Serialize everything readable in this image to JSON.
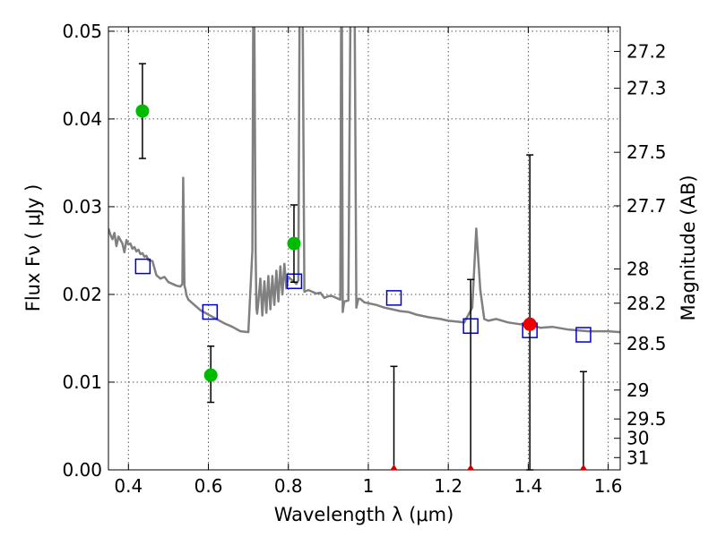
{
  "chart_data": {
    "type": "scatter",
    "xlabel": "Wavelength  λ (μm)",
    "ylabel": "Flux  Fν  ( μJy )",
    "y2label": "Magnitude (AB)",
    "xlim": [
      0.35,
      1.63
    ],
    "ylim": [
      0.0,
      0.0505
    ],
    "grid": true,
    "x_ticks": [
      0.4,
      0.6,
      0.8,
      1.0,
      1.2,
      1.4,
      1.6
    ],
    "x_tick_labels": [
      "0.4",
      "0.6",
      "0.8",
      "1",
      "1.2",
      "1.4",
      "1.6"
    ],
    "y_ticks": [
      0.0,
      0.01,
      0.02,
      0.03,
      0.04,
      0.05
    ],
    "y_tick_labels": [
      "0.00",
      "0.01",
      "0.02",
      "0.03",
      "0.04",
      "0.05"
    ],
    "right_ticks": [
      {
        "label": "27.2",
        "flux": 0.0477
      },
      {
        "label": "27.3",
        "flux": 0.0435
      },
      {
        "label": "27.5",
        "flux": 0.0362
      },
      {
        "label": "27.7",
        "flux": 0.0301
      },
      {
        "label": "28",
        "flux": 0.0229
      },
      {
        "label": "28.2",
        "flux": 0.019
      },
      {
        "label": "28.5",
        "flux": 0.0144
      },
      {
        "label": "29",
        "flux": 0.0091
      },
      {
        "label": "29.5",
        "flux": 0.0058
      },
      {
        "label": "30",
        "flux": 0.0036
      },
      {
        "label": "31",
        "flux": 0.0014
      }
    ],
    "colors": {
      "model": "#808080",
      "detected": "#00bb00",
      "highlight": "#ee0000",
      "model_photometry": "#0000cc",
      "upper_limit": "#cc0000",
      "errorbar": "#000000"
    },
    "series": [
      {
        "type": "line",
        "x": [
          0.35,
          0.355,
          0.36,
          0.365,
          0.37,
          0.375,
          0.38,
          0.385,
          0.39,
          0.395,
          0.4,
          0.405,
          0.41,
          0.415,
          0.42,
          0.425,
          0.43,
          0.435,
          0.44,
          0.445,
          0.45,
          0.46,
          0.47,
          0.48,
          0.49,
          0.5,
          0.51,
          0.52,
          0.53,
          0.535,
          0.537,
          0.54,
          0.543,
          0.545,
          0.55,
          0.56,
          0.58,
          0.6,
          0.62,
          0.64,
          0.66,
          0.68,
          0.7,
          0.71,
          0.712,
          0.715,
          0.718,
          0.72,
          0.722,
          0.725,
          0.73,
          0.735,
          0.74,
          0.745,
          0.75,
          0.755,
          0.76,
          0.765,
          0.77,
          0.775,
          0.78,
          0.785,
          0.79,
          0.795,
          0.8,
          0.81,
          0.82,
          0.825,
          0.828,
          0.83,
          0.833,
          0.836,
          0.84,
          0.85,
          0.86,
          0.87,
          0.88,
          0.89,
          0.9,
          0.91,
          0.92,
          0.93,
          0.932,
          0.934,
          0.936,
          0.938,
          0.94,
          0.95,
          0.955,
          0.957,
          0.96,
          0.963,
          0.966,
          0.97,
          0.975,
          0.98,
          0.99,
          1.0,
          1.02,
          1.04,
          1.06,
          1.08,
          1.1,
          1.12,
          1.15,
          1.18,
          1.2,
          1.22,
          1.24,
          1.26,
          1.27,
          1.28,
          1.29,
          1.3,
          1.32,
          1.35,
          1.38,
          1.4,
          1.43,
          1.46,
          1.5,
          1.55,
          1.6,
          1.63
        ],
        "y": [
          0.0275,
          0.0268,
          0.0263,
          0.027,
          0.0255,
          0.0266,
          0.0262,
          0.0258,
          0.0248,
          0.0262,
          0.0257,
          0.0258,
          0.0252,
          0.0254,
          0.0249,
          0.0251,
          0.0246,
          0.0247,
          0.0243,
          0.0244,
          0.0239,
          0.0238,
          0.0222,
          0.0218,
          0.022,
          0.0214,
          0.0212,
          0.021,
          0.0209,
          0.0212,
          0.0333,
          0.021,
          0.0205,
          0.0199,
          0.0194,
          0.019,
          0.0182,
          0.0177,
          0.0172,
          0.0167,
          0.0163,
          0.0158,
          0.0157,
          0.025,
          0.0508,
          0.0508,
          0.025,
          0.0185,
          0.0178,
          0.0192,
          0.0218,
          0.0176,
          0.0215,
          0.0179,
          0.0221,
          0.0183,
          0.0221,
          0.0188,
          0.0227,
          0.0192,
          0.0232,
          0.02,
          0.0235,
          0.0207,
          0.022,
          0.0216,
          0.0212,
          0.0216,
          0.0508,
          0.0508,
          0.0508,
          0.0508,
          0.0203,
          0.0205,
          0.0203,
          0.0201,
          0.0202,
          0.0196,
          0.0198,
          0.0198,
          0.0196,
          0.0194,
          0.0508,
          0.0508,
          0.018,
          0.0187,
          0.0192,
          0.0193,
          0.0508,
          0.0508,
          0.0508,
          0.0508,
          0.0508,
          0.0185,
          0.0195,
          0.0195,
          0.0191,
          0.019,
          0.0188,
          0.0185,
          0.0183,
          0.0181,
          0.018,
          0.0177,
          0.0174,
          0.0172,
          0.017,
          0.0169,
          0.0168,
          0.0185,
          0.0275,
          0.0205,
          0.0172,
          0.017,
          0.0172,
          0.0168,
          0.0166,
          0.0166,
          0.0162,
          0.0163,
          0.016,
          0.0158,
          0.0158,
          0.0157
        ]
      },
      {
        "type": "squares",
        "x": [
          0.436,
          0.604,
          0.815,
          1.064,
          1.256,
          1.404,
          1.538
        ],
        "y": [
          0.0232,
          0.018,
          0.0215,
          0.0196,
          0.0164,
          0.0159,
          0.0154
        ]
      },
      {
        "type": "errorbar",
        "x": [
          0.435,
          0.606,
          0.814,
          1.404
        ],
        "y": [
          0.0409,
          0.0108,
          0.0258,
          0.0166
        ],
        "yerr_low": [
          0.0054,
          0.0031,
          0.0044,
          0.0166
        ],
        "yerr_high": [
          0.0054,
          0.0033,
          0.0044,
          0.0193
        ]
      },
      {
        "type": "upper_limit",
        "x": [
          1.064,
          1.256,
          1.538
        ],
        "y": [
          0.0,
          0.0,
          0.0
        ],
        "yerr_high": [
          0.0118,
          0.0217,
          0.0112
        ]
      }
    ]
  }
}
